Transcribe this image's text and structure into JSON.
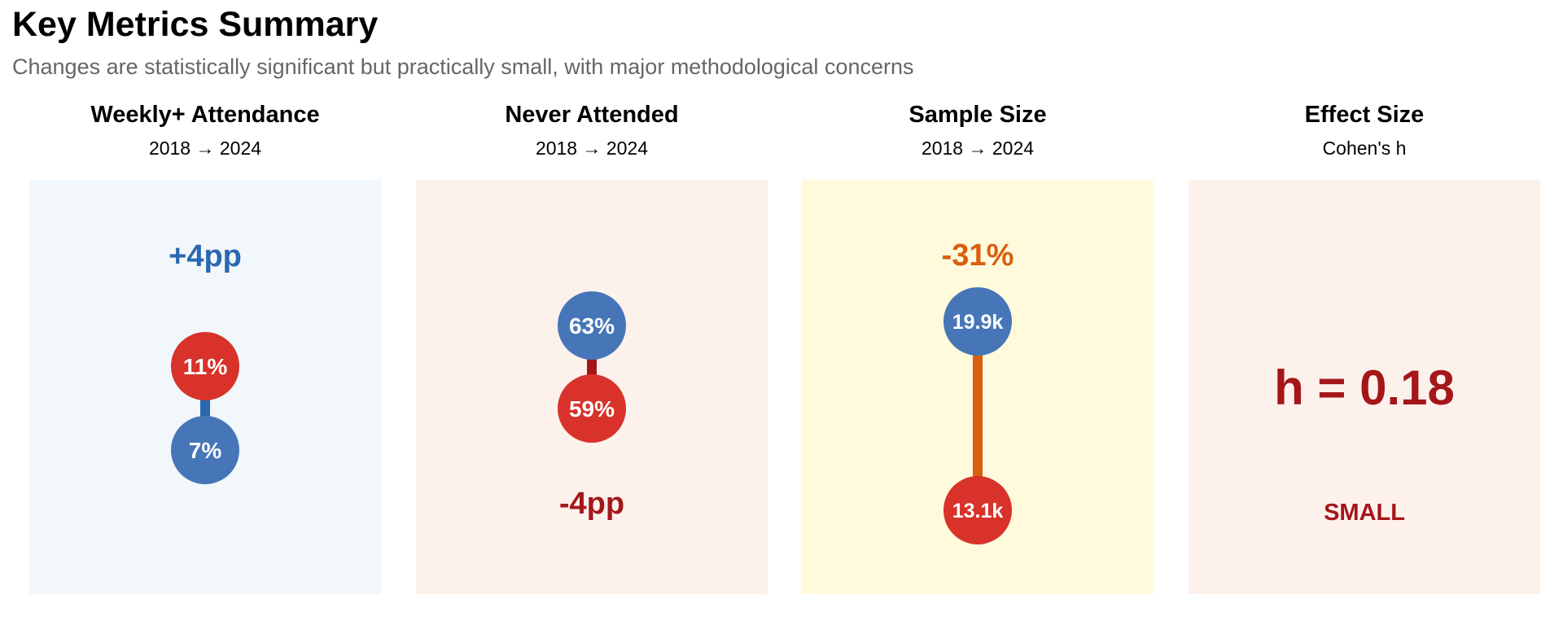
{
  "title": "Key Metrics Summary",
  "subtitle": "Changes are statistically significant but practically small, with major methodological concerns",
  "colors": {
    "blue": "#4676b8",
    "red": "#d8322a",
    "dark_red": "#a4161a",
    "orange": "#d95f0e",
    "text_gray": "#666666"
  },
  "chart_data": [
    {
      "type": "dumbbell",
      "title": "Weekly+ Attendance",
      "subtitle": "2018 → 2024",
      "background": "#f1f7fa",
      "points": [
        {
          "year": "2018",
          "value": 7,
          "label": "7%",
          "color": "#4676b8"
        },
        {
          "year": "2024",
          "value": 11,
          "label": "11%",
          "color": "#d8322a"
        }
      ],
      "connector_color": "#2a67b0",
      "change_label": "+4pp",
      "change_color": "#2a67b0",
      "change_position": "top"
    },
    {
      "type": "dumbbell",
      "title": "Never Attended",
      "subtitle": "2018 → 2024",
      "background": "#fdf1ec",
      "points": [
        {
          "year": "2018",
          "value": 63,
          "label": "63%",
          "color": "#4676b8"
        },
        {
          "year": "2024",
          "value": 59,
          "label": "59%",
          "color": "#d8322a"
        }
      ],
      "connector_color": "#a4161a",
      "change_label": "-4pp",
      "change_color": "#a4161a",
      "change_position": "bottom"
    },
    {
      "type": "dumbbell",
      "title": "Sample Size",
      "subtitle": "2018 → 2024",
      "background": "#fffadc",
      "points": [
        {
          "year": "2018",
          "value": 19.9,
          "label": "19.9k",
          "color": "#4676b8"
        },
        {
          "year": "2024",
          "value": 13.1,
          "label": "13.1k",
          "color": "#d8322a"
        }
      ],
      "connector_color": "#d95f0e",
      "change_label": "-31%",
      "change_color": "#d95f0e",
      "change_position": "top"
    },
    {
      "type": "stat",
      "title": "Effect Size",
      "subtitle": "Cohen's h",
      "background": "#fdf1ec",
      "value_label": "h = 0.18",
      "value": 0.18,
      "value_color": "#a4161a",
      "interpretation": "SMALL",
      "interpretation_color": "#a4161a"
    }
  ]
}
